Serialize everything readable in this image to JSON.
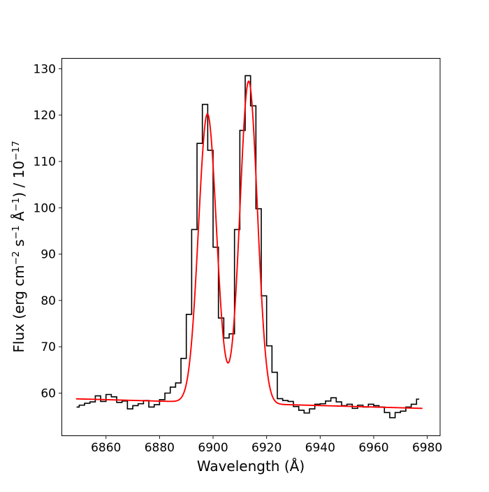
{
  "chart_data": {
    "type": "line",
    "title": "",
    "xlabel": "Wavelength (Å)",
    "ylabel": "Flux (erg cm−2 s−1 Å−1) / 10−17",
    "ylabel_parts": [
      {
        "t": "Flux (erg cm"
      },
      {
        "t": "−2",
        "sup": true
      },
      {
        "t": " s"
      },
      {
        "t": "−1",
        "sup": true
      },
      {
        "t": " Å"
      },
      {
        "t": "−1",
        "sup": true
      },
      {
        "t": ") / 10"
      },
      {
        "t": "−17",
        "sup": true
      }
    ],
    "xlim": [
      6843.5,
      6984.8
    ],
    "ylim": [
      50.8,
      132.25
    ],
    "xticks": [
      6860,
      6880,
      6900,
      6920,
      6940,
      6960,
      6980
    ],
    "yticks": [
      60,
      70,
      80,
      90,
      100,
      110,
      120,
      130
    ],
    "grid": false,
    "legend": null,
    "series": [
      {
        "name": "observed-spectrum",
        "style": "steps-mid",
        "color": "#000000",
        "x": [
          6849,
          6851,
          6853,
          6855,
          6857,
          6859,
          6861,
          6863,
          6865,
          6867,
          6869,
          6871,
          6873,
          6875,
          6877,
          6879,
          6881,
          6883,
          6885,
          6887,
          6889,
          6891,
          6893,
          6895,
          6897,
          6899,
          6901,
          6903,
          6905,
          6907,
          6909,
          6911,
          6913,
          6915,
          6917,
          6919,
          6921,
          6923,
          6925,
          6927,
          6929,
          6931,
          6933,
          6935,
          6937,
          6939,
          6941,
          6943,
          6945,
          6947,
          6949,
          6951,
          6953,
          6955,
          6957,
          6959,
          6961,
          6963,
          6965,
          6967,
          6969,
          6971,
          6973,
          6975,
          6977
        ],
        "y": [
          57.0,
          57.4,
          57.8,
          58.1,
          59.4,
          58.2,
          59.7,
          59.2,
          58.0,
          58.3,
          56.6,
          57.3,
          57.7,
          58.4,
          57.0,
          57.5,
          58.6,
          60.0,
          61.3,
          62.2,
          67.5,
          77.0,
          95.3,
          113.9,
          122.3,
          112.4,
          91.5,
          76.2,
          71.9,
          72.8,
          95.3,
          116.7,
          128.5,
          122.0,
          99.8,
          81.0,
          70.2,
          64.5,
          58.8,
          58.4,
          58.2,
          57.1,
          56.3,
          55.7,
          56.6,
          57.6,
          57.7,
          58.3,
          59.0,
          58.1,
          57.3,
          57.6,
          56.7,
          57.4,
          57.0,
          57.6,
          57.3,
          57.0,
          55.8,
          54.7,
          55.8,
          56.1,
          57.0,
          57.6,
          58.7
        ]
      },
      {
        "name": "model-fit",
        "style": "gaussian-sum",
        "color": "#ff0000",
        "x_range": [
          6849,
          6978
        ],
        "baseline": {
          "anchor_wavelength": 6843.5,
          "anchor_value": 58.85,
          "slope_per_angstrom": -0.0159
        },
        "gaussians": [
          {
            "center": 6897.9,
            "amplitude": 62.3,
            "sigma": 3.35
          },
          {
            "center": 6913.3,
            "amplitude": 69.6,
            "sigma": 3.25
          }
        ]
      }
    ]
  }
}
